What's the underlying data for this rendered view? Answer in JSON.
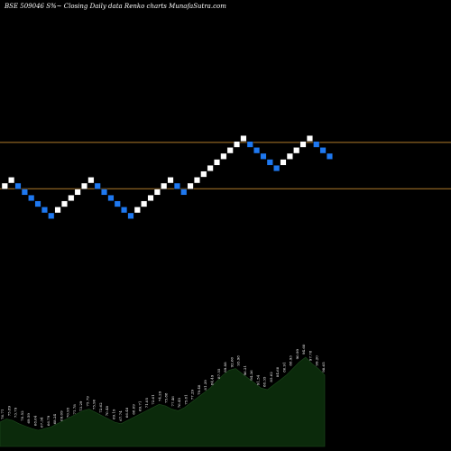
{
  "header": {
    "title": "BSE 509046  S%~  Closing Daily data  Renko  charts MunafaSutra.com"
  },
  "colors": {
    "background": "#000000",
    "up_brick": "#ffffff",
    "down_brick": "#1e78f0",
    "reference_line": "#b07a2a",
    "volume_fill": "#0b2a0b"
  },
  "chart_data": {
    "type": "renko",
    "title": "BSE 509046  S%~  Closing Daily data  Renko  charts MunafaSutra.com",
    "reference_lines": [
      101.5,
      82.0
    ],
    "bricks": [
      {
        "dir": "up",
        "value": 82.0
      },
      {
        "dir": "up",
        "value": 84.5
      },
      {
        "dir": "down",
        "value": 82.0
      },
      {
        "dir": "down",
        "value": 79.5
      },
      {
        "dir": "down",
        "value": 77.0
      },
      {
        "dir": "down",
        "value": 74.5
      },
      {
        "dir": "down",
        "value": 72.0
      },
      {
        "dir": "down",
        "value": 69.5
      },
      {
        "dir": "up",
        "value": 72.0
      },
      {
        "dir": "up",
        "value": 74.5
      },
      {
        "dir": "up",
        "value": 77.0
      },
      {
        "dir": "up",
        "value": 79.5
      },
      {
        "dir": "up",
        "value": 82.0
      },
      {
        "dir": "up",
        "value": 84.5
      },
      {
        "dir": "down",
        "value": 82.0
      },
      {
        "dir": "down",
        "value": 79.5
      },
      {
        "dir": "down",
        "value": 77.0
      },
      {
        "dir": "down",
        "value": 74.5
      },
      {
        "dir": "down",
        "value": 72.0
      },
      {
        "dir": "down",
        "value": 69.5
      },
      {
        "dir": "up",
        "value": 72.0
      },
      {
        "dir": "up",
        "value": 74.5
      },
      {
        "dir": "up",
        "value": 77.0
      },
      {
        "dir": "up",
        "value": 79.5
      },
      {
        "dir": "up",
        "value": 82.0
      },
      {
        "dir": "up",
        "value": 84.5
      },
      {
        "dir": "down",
        "value": 82.0
      },
      {
        "dir": "down",
        "value": 79.5
      },
      {
        "dir": "up",
        "value": 82.0
      },
      {
        "dir": "up",
        "value": 84.5
      },
      {
        "dir": "up",
        "value": 87.0
      },
      {
        "dir": "up",
        "value": 89.5
      },
      {
        "dir": "up",
        "value": 92.0
      },
      {
        "dir": "up",
        "value": 94.5
      },
      {
        "dir": "up",
        "value": 97.0
      },
      {
        "dir": "up",
        "value": 99.5
      },
      {
        "dir": "up",
        "value": 102.0
      },
      {
        "dir": "down",
        "value": 99.5
      },
      {
        "dir": "down",
        "value": 97.0
      },
      {
        "dir": "down",
        "value": 94.5
      },
      {
        "dir": "down",
        "value": 92.0
      },
      {
        "dir": "down",
        "value": 89.5
      },
      {
        "dir": "up",
        "value": 92.0
      },
      {
        "dir": "up",
        "value": 94.5
      },
      {
        "dir": "up",
        "value": 97.0
      },
      {
        "dir": "up",
        "value": 99.5
      },
      {
        "dir": "up",
        "value": 102.0
      },
      {
        "dir": "down",
        "value": 99.5
      },
      {
        "dir": "down",
        "value": 97.0
      },
      {
        "dir": "down",
        "value": 94.5
      }
    ],
    "price_labels": [
      "76.71",
      "75.89",
      "73.79",
      "70.52",
      "69.59",
      "68.64",
      "67.34",
      "66.79",
      "68.24",
      "69.09",
      "70.95",
      "71.78",
      "73.29",
      "75.79",
      "75.90",
      "72.62",
      "70.48",
      "69.19",
      "67.74",
      "66.48",
      "68.09",
      "69.71",
      "71.05",
      "72.61",
      "74.29",
      "75.88",
      "77.46",
      "76.45",
      "75.81",
      "77.29",
      "79.48",
      "81.39",
      "84.49",
      "87.55",
      "89.88",
      "92.60",
      "95.98",
      "96.21",
      "94.36",
      "91.54",
      "88.35",
      "85.62",
      "84.60",
      "86.91",
      "88.93",
      "90.99",
      "94.60",
      "97.78",
      "99.20",
      "98.65"
    ],
    "volume_profile": [
      30,
      34,
      32,
      28,
      25,
      22,
      20,
      22,
      24,
      28,
      32,
      36,
      40,
      44,
      46,
      42,
      38,
      34,
      30,
      28,
      32,
      36,
      40,
      44,
      48,
      52,
      50,
      46,
      44,
      48,
      54,
      60,
      66,
      72,
      80,
      88,
      94,
      96,
      90,
      84,
      78,
      72,
      70,
      76,
      82,
      88,
      96,
      104,
      110,
      102,
      96,
      88
    ]
  }
}
